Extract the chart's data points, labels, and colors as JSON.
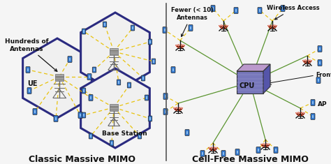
{
  "title_left": "Classic Massive MIMO",
  "title_right": "Cell-Free Massive MIMO",
  "bg_color": "#f5f5f5",
  "hex_color": "#2b2b80",
  "hex_lw": 2.2,
  "yellow_color": "#e8c000",
  "green_color": "#4a8a1a",
  "label_hundreds": "Hundreds of\nAntennas",
  "label_ue": "UE",
  "label_bs": "Base Station",
  "label_fewer": "Fewer (< 10)\nAntennas",
  "label_wireless": "Wireless Access",
  "label_fronthaul": "Fronthaul",
  "label_cpu": "CPU",
  "label_ap": "AP",
  "divider_color": "#555555",
  "text_color": "#111111"
}
